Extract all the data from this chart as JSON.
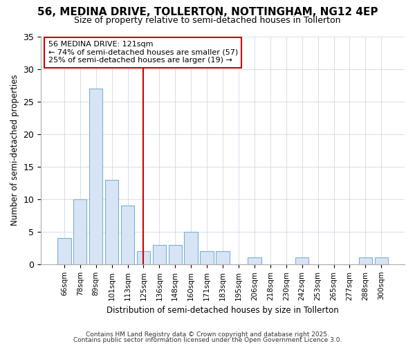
{
  "title_line1": "56, MEDINA DRIVE, TOLLERTON, NOTTINGHAM, NG12 4EP",
  "title_line2": "Size of property relative to semi-detached houses in Tollerton",
  "xlabel": "Distribution of semi-detached houses by size in Tollerton",
  "ylabel": "Number of semi-detached properties",
  "categories": [
    "66sqm",
    "78sqm",
    "89sqm",
    "101sqm",
    "113sqm",
    "125sqm",
    "136sqm",
    "148sqm",
    "160sqm",
    "171sqm",
    "183sqm",
    "195sqm",
    "206sqm",
    "218sqm",
    "230sqm",
    "242sqm",
    "253sqm",
    "265sqm",
    "277sqm",
    "288sqm",
    "300sqm"
  ],
  "values": [
    4,
    10,
    27,
    13,
    9,
    2,
    3,
    3,
    5,
    2,
    2,
    0,
    1,
    0,
    0,
    1,
    0,
    0,
    0,
    1,
    1
  ],
  "bar_color": "#d6e4f5",
  "bar_edge_color": "#7bafd4",
  "vline_x": 5,
  "vline_color": "#cc0000",
  "annotation_line1": "56 MEDINA DRIVE: 121sqm",
  "annotation_line2": "← 74% of semi-detached houses are smaller (57)",
  "annotation_line3": "25% of semi-detached houses are larger (19) →",
  "annotation_box_color": "#cc0000",
  "ylim": [
    0,
    35
  ],
  "yticks": [
    0,
    5,
    10,
    15,
    20,
    25,
    30,
    35
  ],
  "footer_line1": "Contains HM Land Registry data © Crown copyright and database right 2025.",
  "footer_line2": "Contains public sector information licensed under the Open Government Licence 3.0.",
  "bg_color": "#ffffff",
  "plot_bg_color": "#ffffff",
  "grid_color": "#d0d8e8"
}
